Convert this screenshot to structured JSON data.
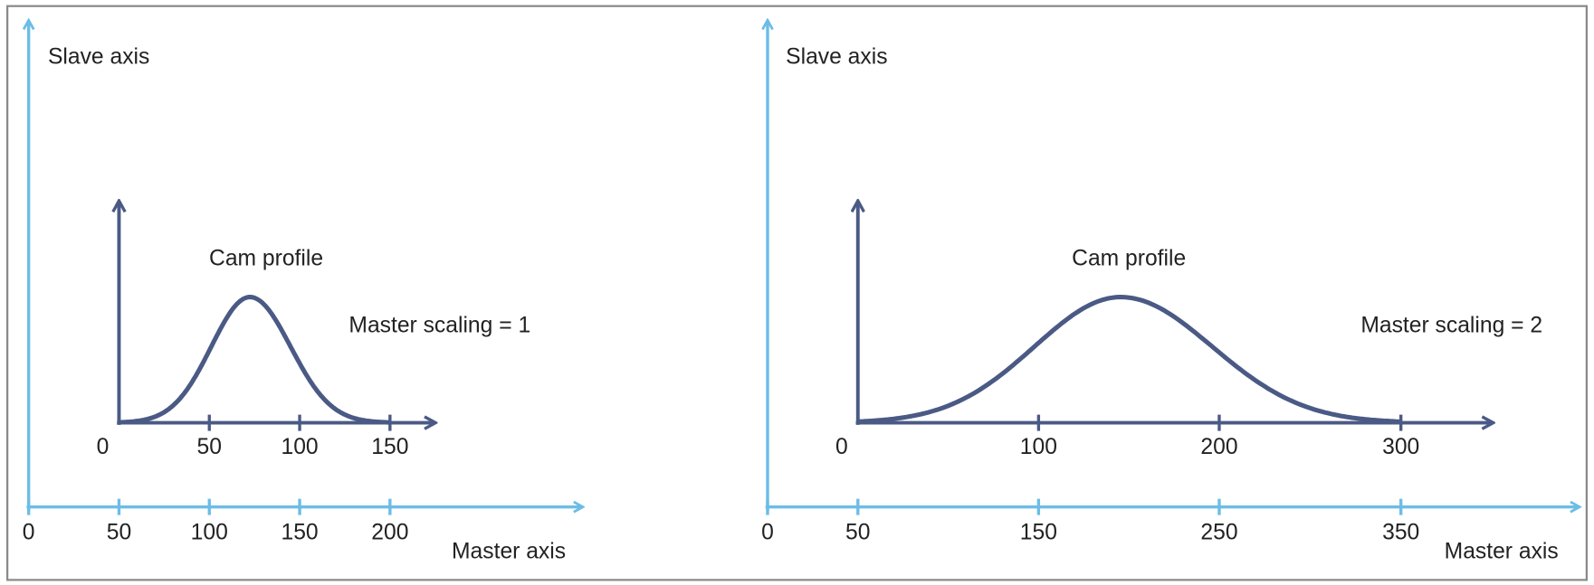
{
  "panels": [
    {
      "slave_axis_label": "Slave axis",
      "master_axis_label": "Master axis",
      "cam_profile_label": "Cam profile",
      "scaling_label": "Master scaling = 1",
      "profile_ticks": [
        "0",
        "50",
        "100",
        "150"
      ],
      "master_ticks": [
        "0",
        "50",
        "100",
        "150",
        "200"
      ]
    },
    {
      "slave_axis_label": "Slave axis",
      "master_axis_label": "Master axis",
      "cam_profile_label": "Cam profile",
      "scaling_label": "Master scaling = 2",
      "profile_ticks": [
        "0",
        "100",
        "200",
        "300"
      ],
      "master_ticks": [
        "0",
        "50",
        "150",
        "250",
        "350"
      ]
    }
  ]
}
